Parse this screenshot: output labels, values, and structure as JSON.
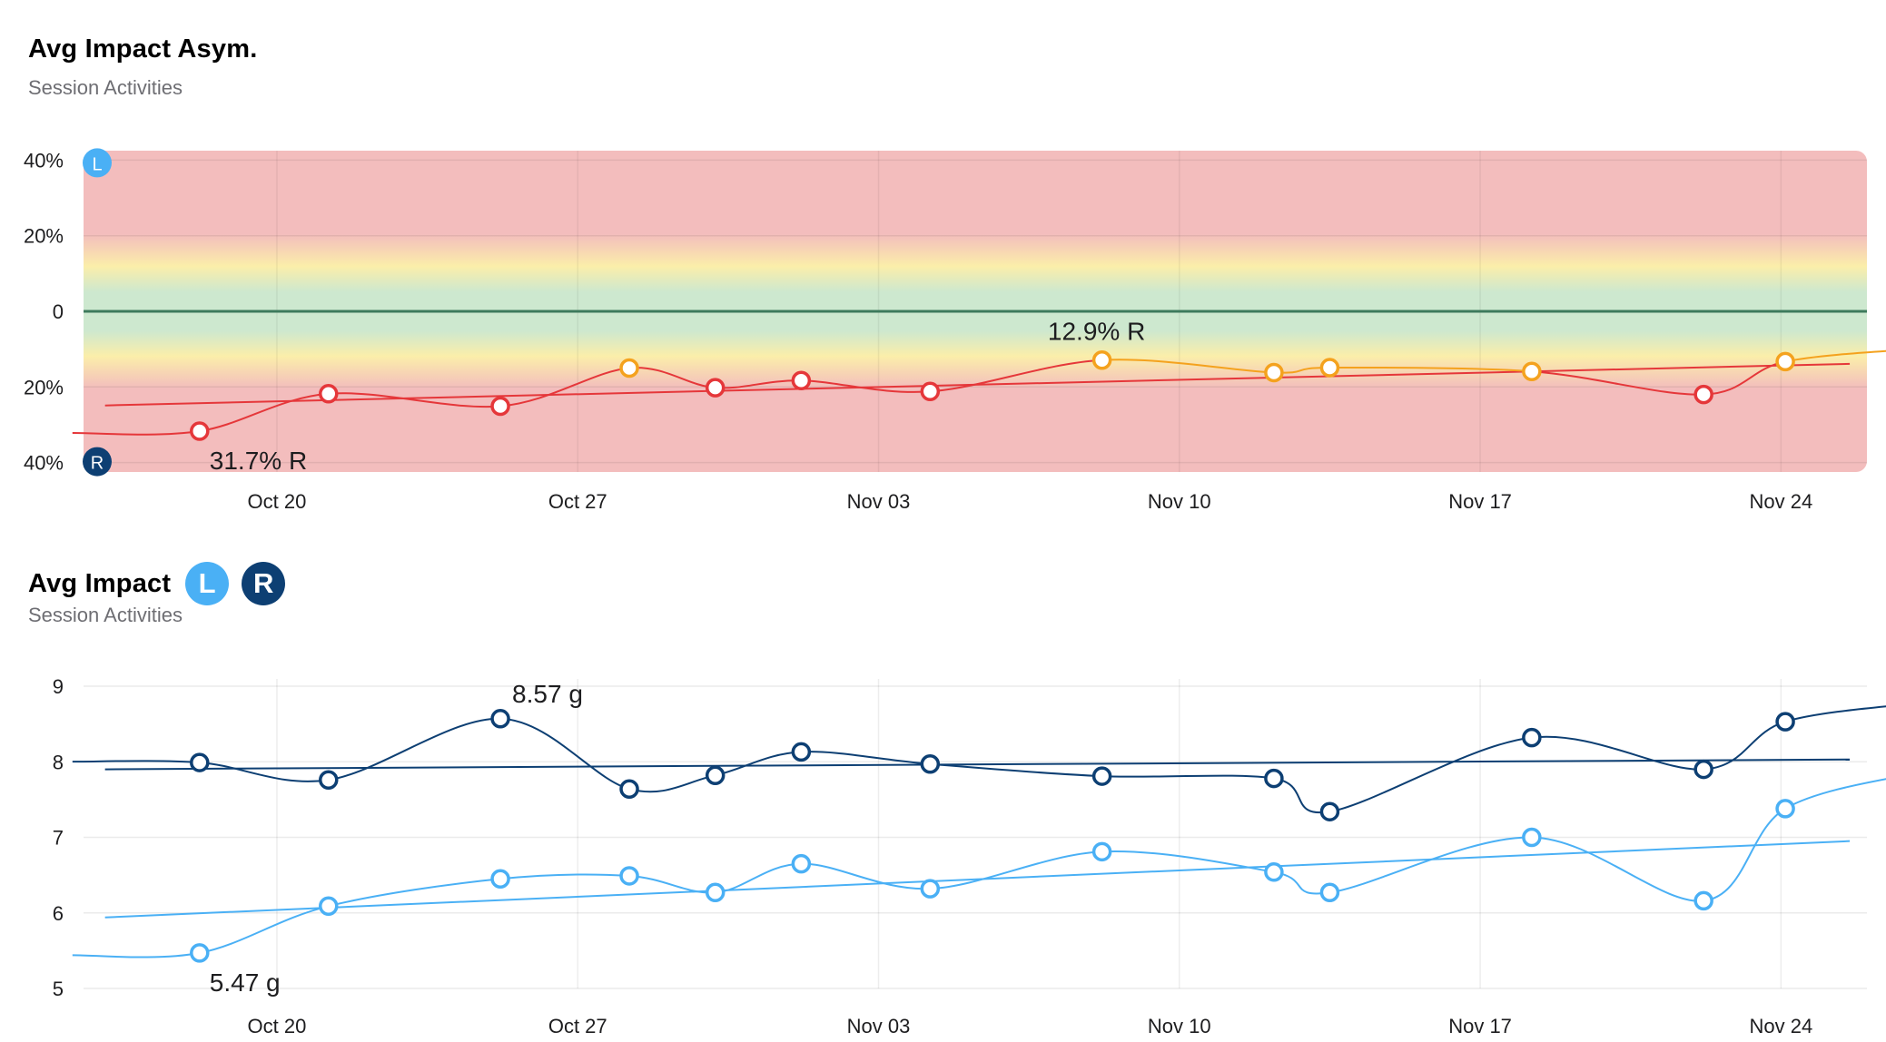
{
  "asymmetry_card": {
    "title": "Avg Impact Asym.",
    "subtitle": "Session Activities",
    "left_marker": "L",
    "right_marker": "R",
    "max_annotation": "31.7% R",
    "min_annotation": "12.9% R"
  },
  "impact_card": {
    "title": "Avg Impact",
    "subtitle": "Session Activities",
    "legend_left": "L",
    "legend_right": "R",
    "max_annotation": "8.57 g",
    "min_annotation": "5.47 g"
  },
  "colors": {
    "left": "#4ab0f5",
    "right": "#0d3f73",
    "asym_high": "#e5373a",
    "asym_mid": "#f4a21e",
    "zero_line": "#3d7a5c",
    "band_red": "#f3bdbd",
    "band_yellow": "#fbeeaa",
    "band_green": "#cde8cf"
  },
  "chart_data": [
    {
      "type": "line",
      "title": "Avg Impact Asym.",
      "subtitle": "Session Activities",
      "xlabel": "",
      "ylabel": "",
      "x_ticks": [
        "Oct 20",
        "Oct 27",
        "Nov 03",
        "Nov 10",
        "Nov 17",
        "Nov 24"
      ],
      "x_tick_days": [
        20,
        27,
        34,
        41,
        48,
        55
      ],
      "y_ticks": [
        "40%",
        "20%",
        "0",
        "20%",
        "40%"
      ],
      "y_tick_values": [
        40,
        20,
        0,
        -20,
        -40
      ],
      "ylim": [
        -42.5,
        42.5
      ],
      "xlim": [
        15.5,
        57
      ],
      "background_bands": [
        "red outside +/-20%",
        "yellow near +/-15%",
        "green near 0"
      ],
      "x": [
        18.2,
        21.2,
        25.2,
        28.2,
        30.2,
        32.2,
        35.2,
        39.2,
        43.2,
        44.5,
        49.2,
        53.2,
        55.1
      ],
      "values": [
        -31.7,
        -21.8,
        -25.1,
        -15.0,
        -20.2,
        -18.3,
        -21.2,
        -12.9,
        -16.2,
        -14.9,
        -15.9,
        -22.0,
        -13.3
      ],
      "trend": {
        "x": [
          16,
          56.6
        ],
        "values": [
          -24.9,
          -13.9
        ]
      },
      "annotations": [
        {
          "text": "31.7% R",
          "x": 18.2,
          "value": -31.7
        },
        {
          "text": "12.9% R",
          "x": 39.2,
          "value": -12.9
        }
      ],
      "y_markers": [
        {
          "label": "L",
          "value": 40
        },
        {
          "label": "R",
          "value": -40
        }
      ]
    },
    {
      "type": "line",
      "title": "Avg Impact",
      "subtitle": "Session Activities",
      "xlabel": "",
      "ylabel": "",
      "x_ticks": [
        "Oct 20",
        "Oct 27",
        "Nov 03",
        "Nov 10",
        "Nov 17",
        "Nov 24"
      ],
      "x_tick_days": [
        20,
        27,
        34,
        41,
        48,
        55
      ],
      "y_ticks": [
        "9",
        "8",
        "7",
        "6",
        "5"
      ],
      "y_tick_values": [
        9,
        8,
        7,
        6,
        5
      ],
      "ylim": [
        5,
        9
      ],
      "xlim": [
        15.5,
        57
      ],
      "series": [
        {
          "name": "R",
          "x": [
            18.2,
            21.2,
            25.2,
            28.2,
            30.2,
            32.2,
            35.2,
            39.2,
            43.2,
            44.5,
            49.2,
            53.2,
            55.1
          ],
          "values": [
            7.99,
            7.76,
            8.57,
            7.64,
            7.82,
            8.13,
            7.97,
            7.81,
            7.78,
            7.34,
            8.32,
            7.9,
            8.53
          ],
          "trend": {
            "x": [
              16,
              56.6
            ],
            "values": [
              7.9,
              8.03
            ]
          }
        },
        {
          "name": "L",
          "x": [
            18.2,
            21.2,
            25.2,
            28.2,
            30.2,
            32.2,
            35.2,
            39.2,
            43.2,
            44.5,
            49.2,
            53.2,
            55.1
          ],
          "values": [
            5.47,
            6.09,
            6.45,
            6.49,
            6.27,
            6.65,
            6.32,
            6.81,
            6.54,
            6.27,
            7.0,
            6.16,
            7.38
          ],
          "trend": {
            "x": [
              16,
              56.6
            ],
            "values": [
              5.94,
              6.95
            ]
          }
        }
      ],
      "annotations": [
        {
          "text": "8.57 g",
          "x": 25.2,
          "value": 8.57
        },
        {
          "text": "5.47 g",
          "x": 18.2,
          "value": 5.47
        }
      ]
    }
  ]
}
